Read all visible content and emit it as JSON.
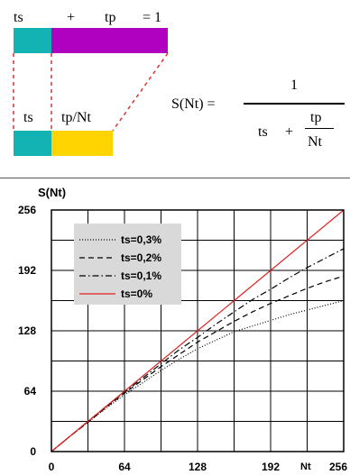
{
  "diagram": {
    "top_ts": "ts",
    "top_plus": "+",
    "top_tp": "tp",
    "top_eq": "= 1",
    "bottom_ts": "ts",
    "bottom_tp_nt": "tp/Nt",
    "colors": {
      "ts": "#13b3b3",
      "tp": "#b000c0",
      "tp_nt": "#ffd400",
      "dashes": "#e03030"
    }
  },
  "formula": {
    "lhs": "S(Nt) =",
    "numerator": "1",
    "denom_ts": "ts",
    "denom_plus": "+",
    "frac_num": "tp",
    "frac_den": "Nt"
  },
  "chart_data": {
    "type": "line",
    "ylabel": "S(Nt)",
    "xlabel": "Nt",
    "xlim": [
      0,
      256
    ],
    "ylim": [
      0,
      256
    ],
    "xticks": [
      "0",
      "64",
      "128",
      "192",
      "256"
    ],
    "yticks": [
      "0",
      "64",
      "128",
      "192",
      "256"
    ],
    "grid": true,
    "legend_position": "top-left",
    "series": [
      {
        "name": "ts=0,3%",
        "style": "dotted",
        "color": "#000000",
        "x": [
          0,
          16,
          32,
          48,
          64,
          80,
          96,
          112,
          128,
          144,
          160,
          176,
          192,
          208,
          224,
          240,
          256
        ],
        "y": [
          0,
          16,
          31,
          46,
          60,
          73,
          86,
          98,
          109,
          118,
          127,
          133,
          139,
          145,
          150,
          155,
          160
        ]
      },
      {
        "name": "ts=0,2%",
        "style": "dashed",
        "color": "#000000",
        "x": [
          0,
          16,
          32,
          48,
          64,
          80,
          96,
          112,
          128,
          144,
          160,
          176,
          192,
          208,
          224,
          240,
          256
        ],
        "y": [
          0,
          16,
          31,
          47,
          62,
          76,
          90,
          103,
          116,
          127,
          138,
          148,
          157,
          165,
          173,
          180,
          186
        ]
      },
      {
        "name": "ts=0,1%",
        "style": "dashdot",
        "color": "#000000",
        "x": [
          0,
          16,
          32,
          48,
          64,
          80,
          96,
          112,
          128,
          144,
          160,
          176,
          192,
          208,
          224,
          240,
          256
        ],
        "y": [
          0,
          16,
          32,
          48,
          63,
          78,
          93,
          108,
          121,
          135,
          148,
          161,
          172,
          184,
          195,
          205,
          215
        ]
      },
      {
        "name": "ts=0%",
        "style": "solid",
        "color": "#e02020",
        "x": [
          0,
          256
        ],
        "y": [
          0,
          256
        ]
      }
    ]
  }
}
